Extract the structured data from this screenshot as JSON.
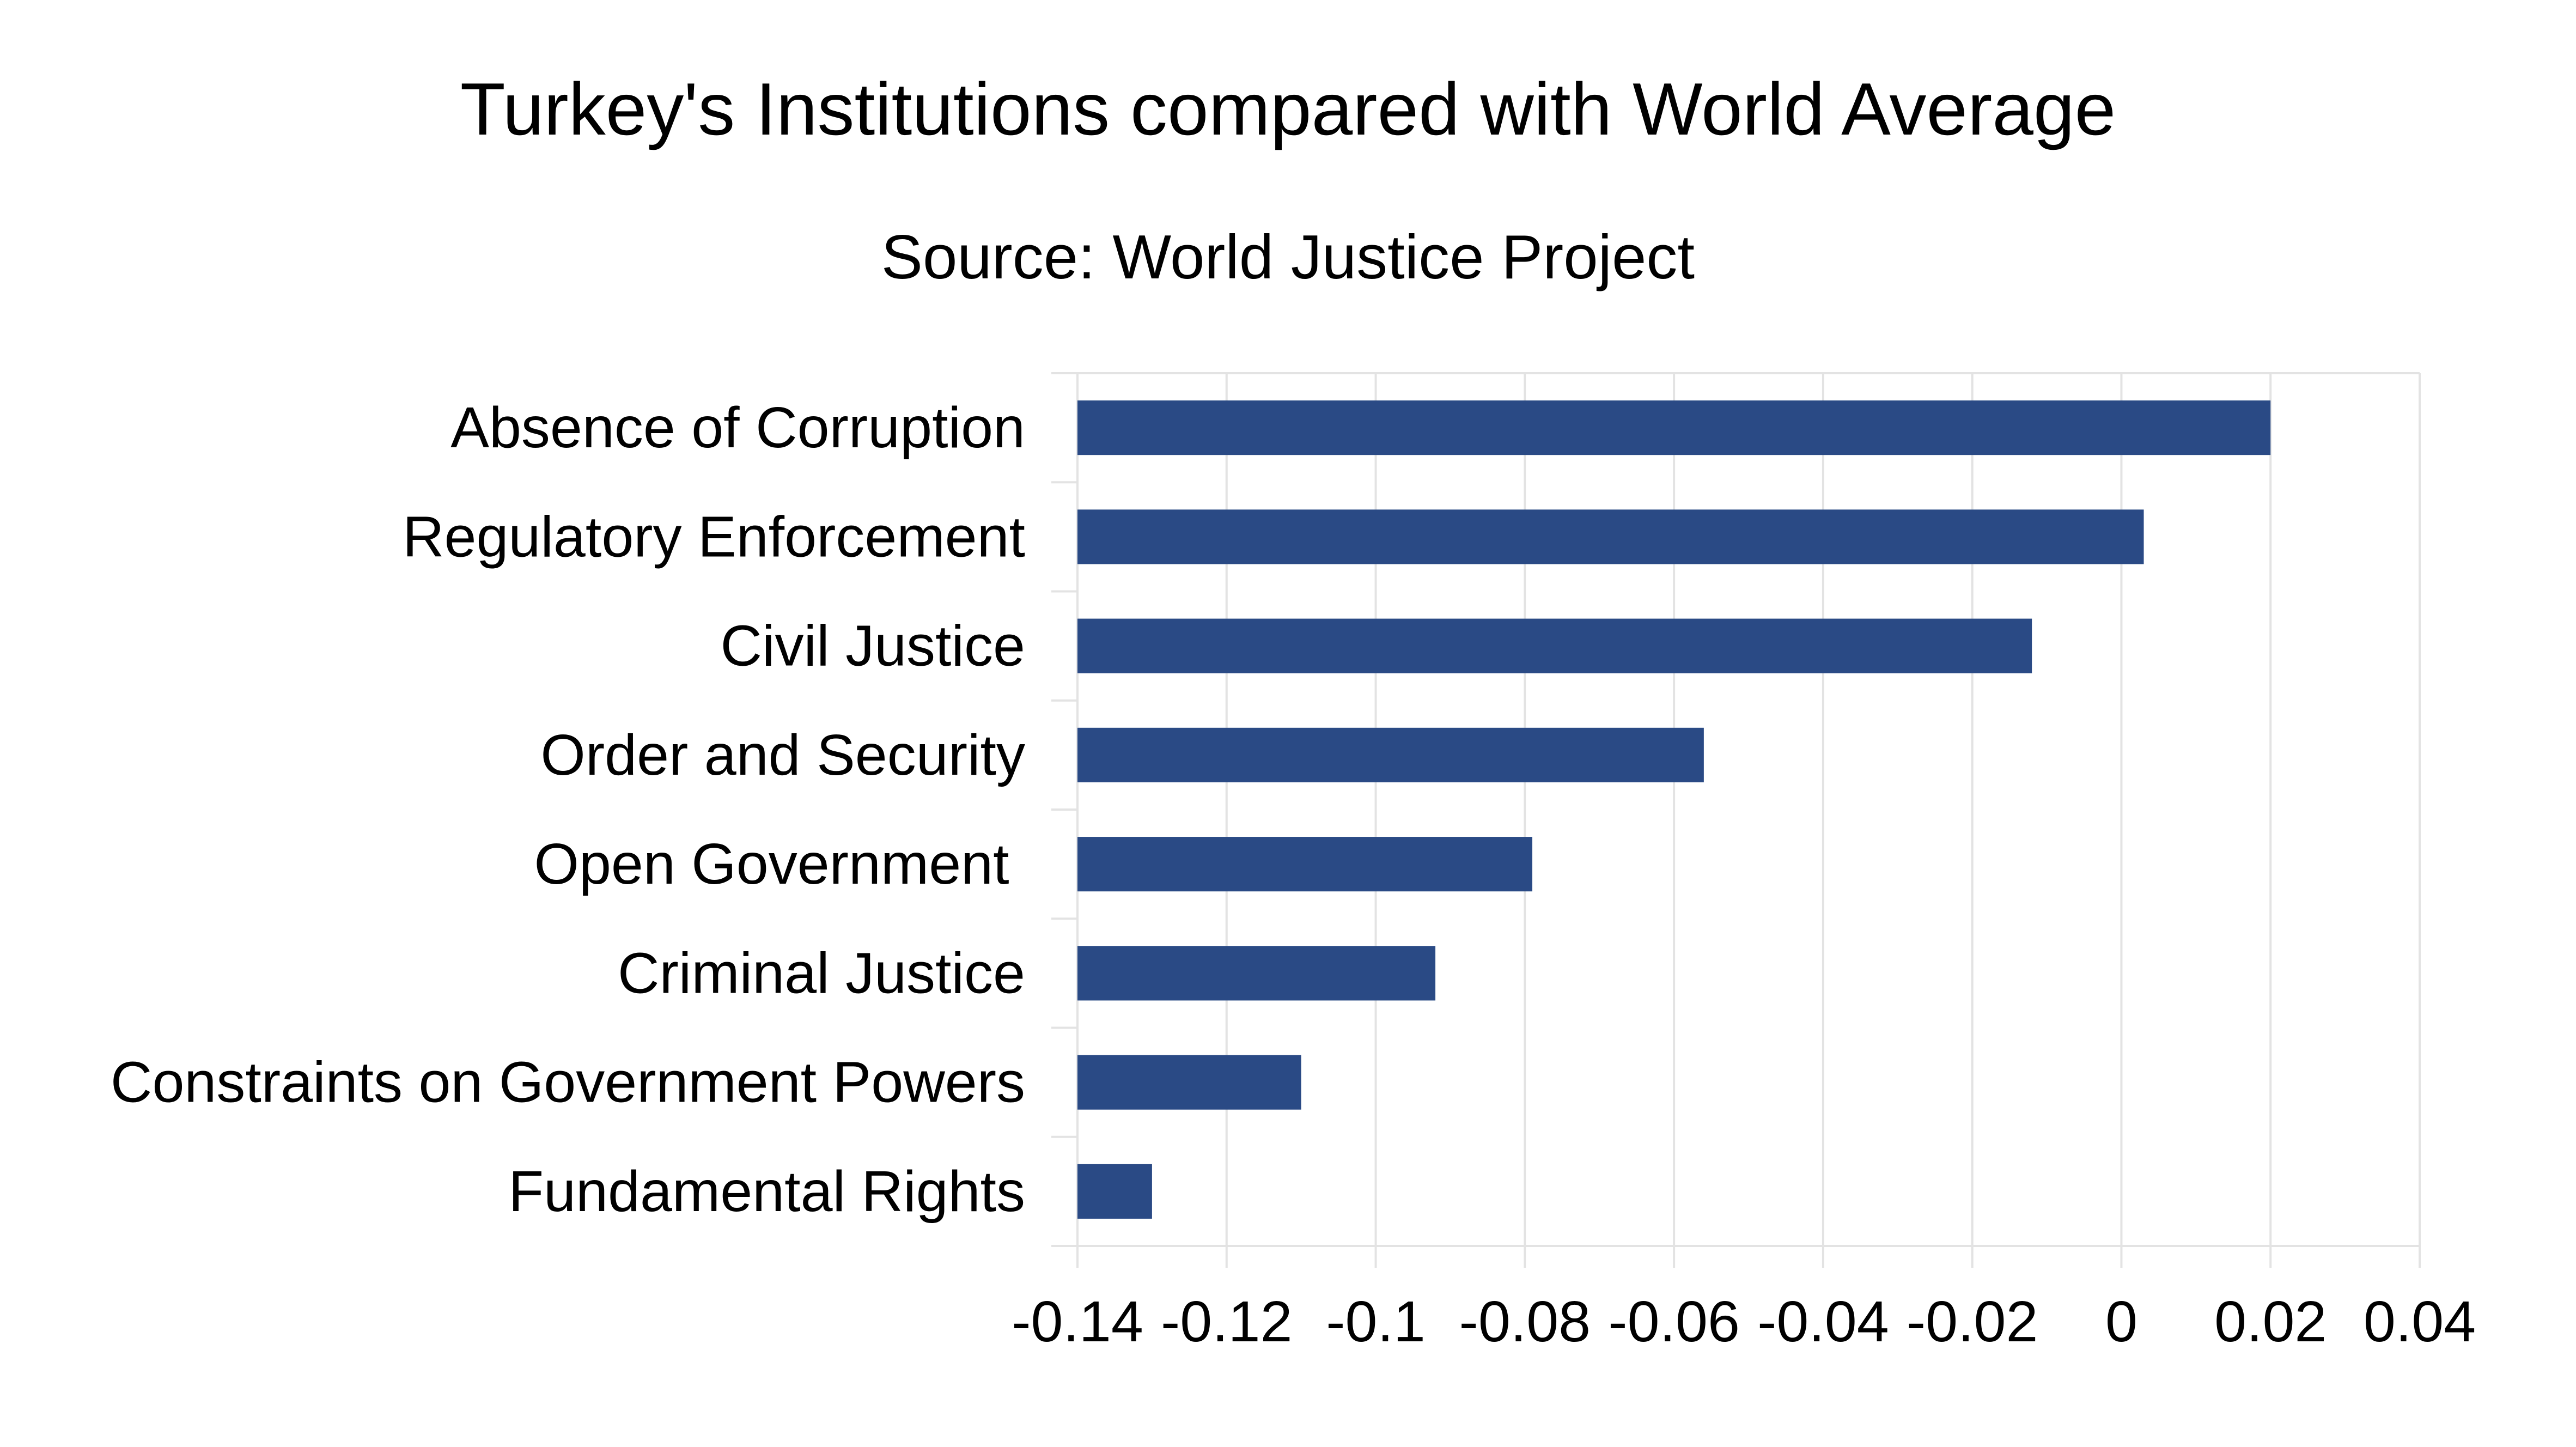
{
  "chart_data": {
    "type": "bar",
    "orientation": "horizontal",
    "title": "Turkey's Institutions compared with World Average",
    "subtitle": "Source: World Justice Project",
    "categories": [
      "Absence of Corruption",
      "Regulatory Enforcement",
      "Civil Justice",
      "Order and Security",
      "Open Government ",
      "Criminal Justice",
      "Constraints on Government Powers",
      "Fundamental Rights"
    ],
    "values": [
      0.02,
      0.003,
      -0.012,
      -0.056,
      -0.079,
      -0.092,
      -0.11,
      -0.13
    ],
    "xlim": [
      -0.14,
      0.04
    ],
    "x_ticks": [
      -0.14,
      -0.12,
      -0.1,
      -0.08,
      -0.06,
      -0.04,
      -0.02,
      0,
      0.02,
      0.04
    ],
    "x_tick_labels": [
      "-0.14",
      "-0.12",
      "-0.1",
      "-0.08",
      "-0.06",
      "-0.04",
      "-0.02",
      "0",
      "0.02",
      "0.04"
    ],
    "xlabel": "",
    "ylabel": "",
    "grid": true,
    "legend": "none",
    "bar_color": "#2a4a85",
    "gridline_color": "#e3e3e3"
  }
}
